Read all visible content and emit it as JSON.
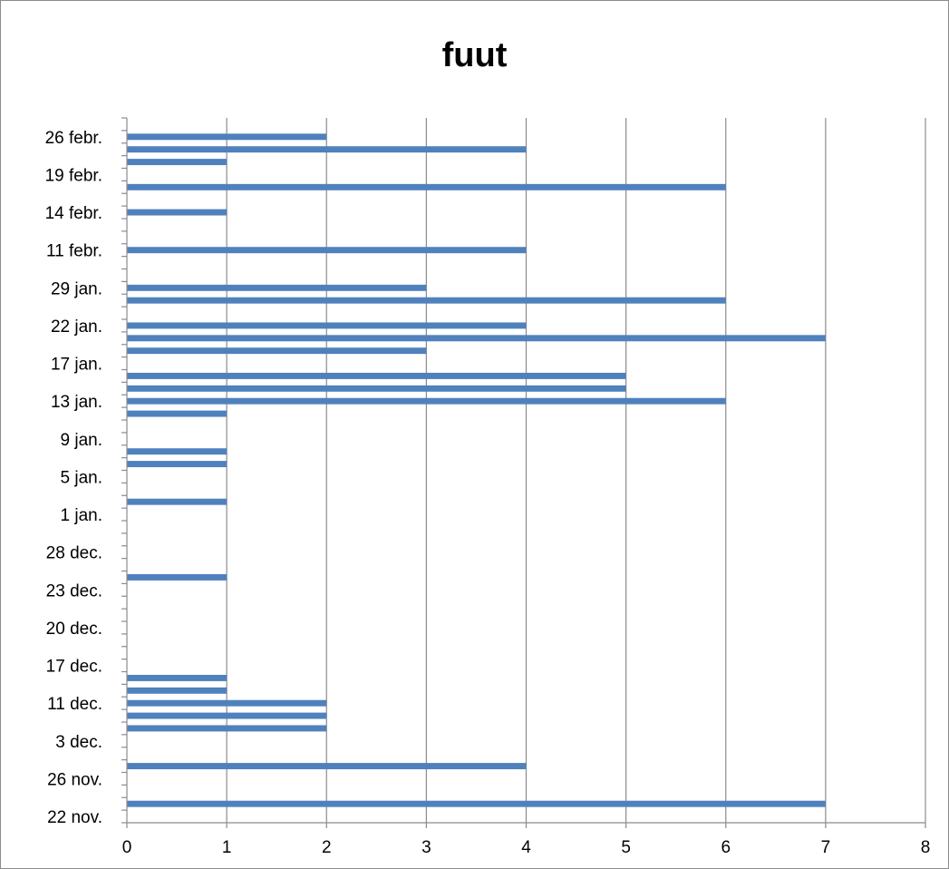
{
  "chart_data": {
    "type": "bar",
    "orientation": "horizontal",
    "title": "fuut",
    "xlabel": "",
    "ylabel": "",
    "xlim": [
      0,
      8
    ],
    "x_ticks": [
      "0",
      "1",
      "2",
      "3",
      "4",
      "5",
      "6",
      "7",
      "8"
    ],
    "y_tick_labels": [
      "22 nov.",
      "26 nov.",
      "3 dec.",
      "11 dec.",
      "17 dec.",
      "20 dec.",
      "23 dec.",
      "28 dec.",
      "1 jan.",
      "5 jan.",
      "9 jan.",
      "13 jan.",
      "17 jan.",
      "22 jan.",
      "29 jan.",
      "11 febr.",
      "14 febr.",
      "19 febr.",
      "26 febr."
    ],
    "category_count": 56,
    "grid": true,
    "legend": "none",
    "bar_color": "#4f81bd",
    "bars": [
      {
        "index": 1,
        "value": 7
      },
      {
        "index": 4,
        "value": 4
      },
      {
        "index": 7,
        "value": 2
      },
      {
        "index": 8,
        "value": 2
      },
      {
        "index": 9,
        "value": 2
      },
      {
        "index": 10,
        "value": 1
      },
      {
        "index": 11,
        "value": 1
      },
      {
        "index": 19,
        "value": 1
      },
      {
        "index": 25,
        "value": 1
      },
      {
        "index": 28,
        "value": 1
      },
      {
        "index": 29,
        "value": 1
      },
      {
        "index": 32,
        "value": 1
      },
      {
        "index": 33,
        "value": 6
      },
      {
        "index": 34,
        "value": 5
      },
      {
        "index": 35,
        "value": 5
      },
      {
        "index": 37,
        "value": 3
      },
      {
        "index": 38,
        "value": 7
      },
      {
        "index": 39,
        "value": 4
      },
      {
        "index": 41,
        "value": 6
      },
      {
        "index": 42,
        "value": 3
      },
      {
        "index": 45,
        "value": 4
      },
      {
        "index": 48,
        "value": 1
      },
      {
        "index": 50,
        "value": 6
      },
      {
        "index": 52,
        "value": 1
      },
      {
        "index": 53,
        "value": 4
      },
      {
        "index": 54,
        "value": 2
      }
    ]
  }
}
